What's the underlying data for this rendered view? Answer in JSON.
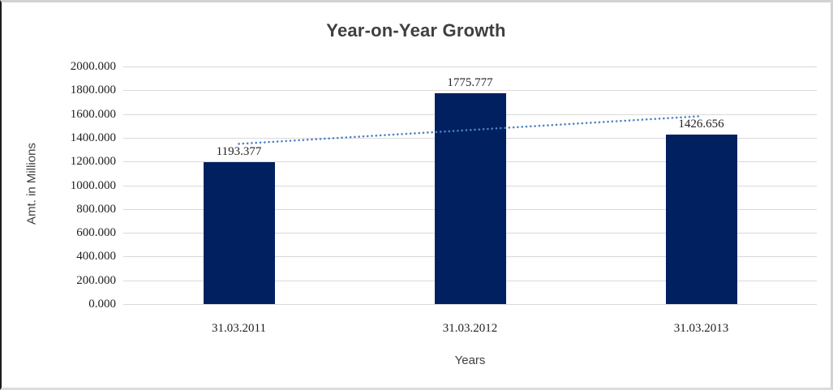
{
  "chart_data": {
    "type": "bar",
    "title": "Year-on-Year Growth",
    "xlabel": "Years",
    "ylabel": "Amt. in Millions",
    "categories": [
      "31.03.2011",
      "31.03.2012",
      "31.03.2013"
    ],
    "values": [
      1193.377,
      1775.777,
      1426.656
    ],
    "data_labels": [
      "1193.377",
      "1775.777",
      "1426.656"
    ],
    "ylim": [
      0,
      2000
    ],
    "ytick_step": 200,
    "ytick_labels": [
      "2000.000",
      "1800.000",
      "1600.000",
      "1400.000",
      "1200.000",
      "1000.000",
      "800.000",
      "600.000",
      "400.000",
      "200.000",
      "0.000"
    ],
    "grid": "horizontal",
    "legend": "none",
    "bar_color": "#002060",
    "gridline_color": "#d9d9d9",
    "label_color": "#1f1f1f",
    "title_color": "#3f3f3f",
    "trendline": {
      "style": "dotted",
      "color": "#4e82c4",
      "start_value": 1348.6,
      "end_value": 1581.9
    }
  }
}
